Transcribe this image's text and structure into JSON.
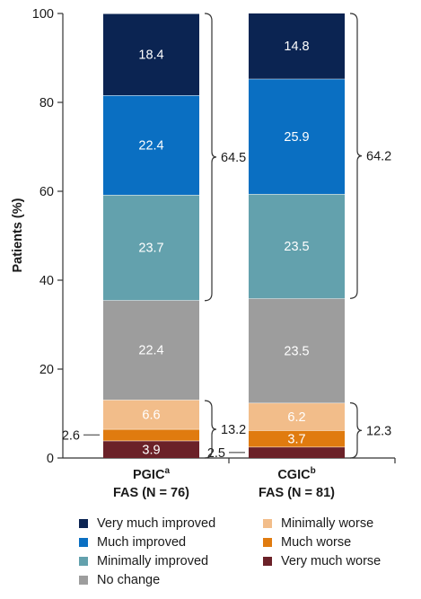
{
  "chart_data": {
    "type": "bar",
    "stacked": true,
    "ylabel": "Patients (%)",
    "ylim": [
      0,
      100
    ],
    "yticks": [
      "0",
      "20",
      "40",
      "60",
      "80",
      "100"
    ],
    "grid": false,
    "legend_position": "bottom",
    "categories": [
      {
        "line1": "PGIC",
        "sup": "a",
        "line2": "FAS (N = 76)"
      },
      {
        "line1": "CGIC",
        "sup": "b",
        "line2": "FAS (N = 81)"
      }
    ],
    "series": [
      {
        "name": "Very much worse",
        "color": "#6b2128",
        "values": [
          3.9,
          2.5
        ],
        "labels": [
          "3.9",
          "2.5"
        ],
        "label_inside": [
          true,
          false
        ],
        "label_color": "#ffffff"
      },
      {
        "name": "Much worse",
        "color": "#e07b0f",
        "values": [
          2.6,
          3.7
        ],
        "labels": [
          "2.6",
          "3.7"
        ],
        "label_inside": [
          false,
          true
        ],
        "label_color": "#ffffff"
      },
      {
        "name": "Minimally worse",
        "color": "#f2bd8a",
        "values": [
          6.6,
          6.2
        ],
        "labels": [
          "6.6",
          "6.2"
        ],
        "label_inside": [
          true,
          true
        ],
        "label_color": "#ffffff"
      },
      {
        "name": "No change",
        "color": "#9d9d9d",
        "values": [
          22.4,
          23.5
        ],
        "labels": [
          "22.4",
          "23.5"
        ],
        "label_inside": [
          true,
          true
        ],
        "label_color": "#ffffff"
      },
      {
        "name": "Minimally improved",
        "color": "#63a1ad",
        "values": [
          23.7,
          23.5
        ],
        "labels": [
          "23.7",
          "23.5"
        ],
        "label_inside": [
          true,
          true
        ],
        "label_color": "#ffffff"
      },
      {
        "name": "Much improved",
        "color": "#0a6fc2",
        "values": [
          22.4,
          25.9
        ],
        "labels": [
          "22.4",
          "25.9"
        ],
        "label_inside": [
          true,
          true
        ],
        "label_color": "#ffffff"
      },
      {
        "name": "Very much improved",
        "color": "#0b2452",
        "values": [
          18.4,
          14.8
        ],
        "labels": [
          "18.4",
          "14.8"
        ],
        "label_inside": [
          true,
          true
        ],
        "label_color": "#ffffff"
      }
    ],
    "brackets": [
      {
        "category": 0,
        "from": 0,
        "to": 12.9,
        "label": "13.2"
      },
      {
        "category": 0,
        "from": 35.4,
        "to": 100,
        "label": "64.5"
      },
      {
        "category": 1,
        "from": 0,
        "to": 12.4,
        "label": "12.3"
      },
      {
        "category": 1,
        "from": 35.9,
        "to": 100,
        "label": "64.2"
      }
    ]
  },
  "legend": {
    "items": [
      {
        "label": "Very much improved",
        "color": "#0b2452"
      },
      {
        "label": "Minimally worse",
        "color": "#f2bd8a"
      },
      {
        "label": "Much improved",
        "color": "#0a6fc2"
      },
      {
        "label": "Much worse",
        "color": "#e07b0f"
      },
      {
        "label": "Minimally improved",
        "color": "#63a1ad"
      },
      {
        "label": "Very much worse",
        "color": "#6b2128"
      },
      {
        "label": "No change",
        "color": "#9d9d9d"
      }
    ]
  }
}
